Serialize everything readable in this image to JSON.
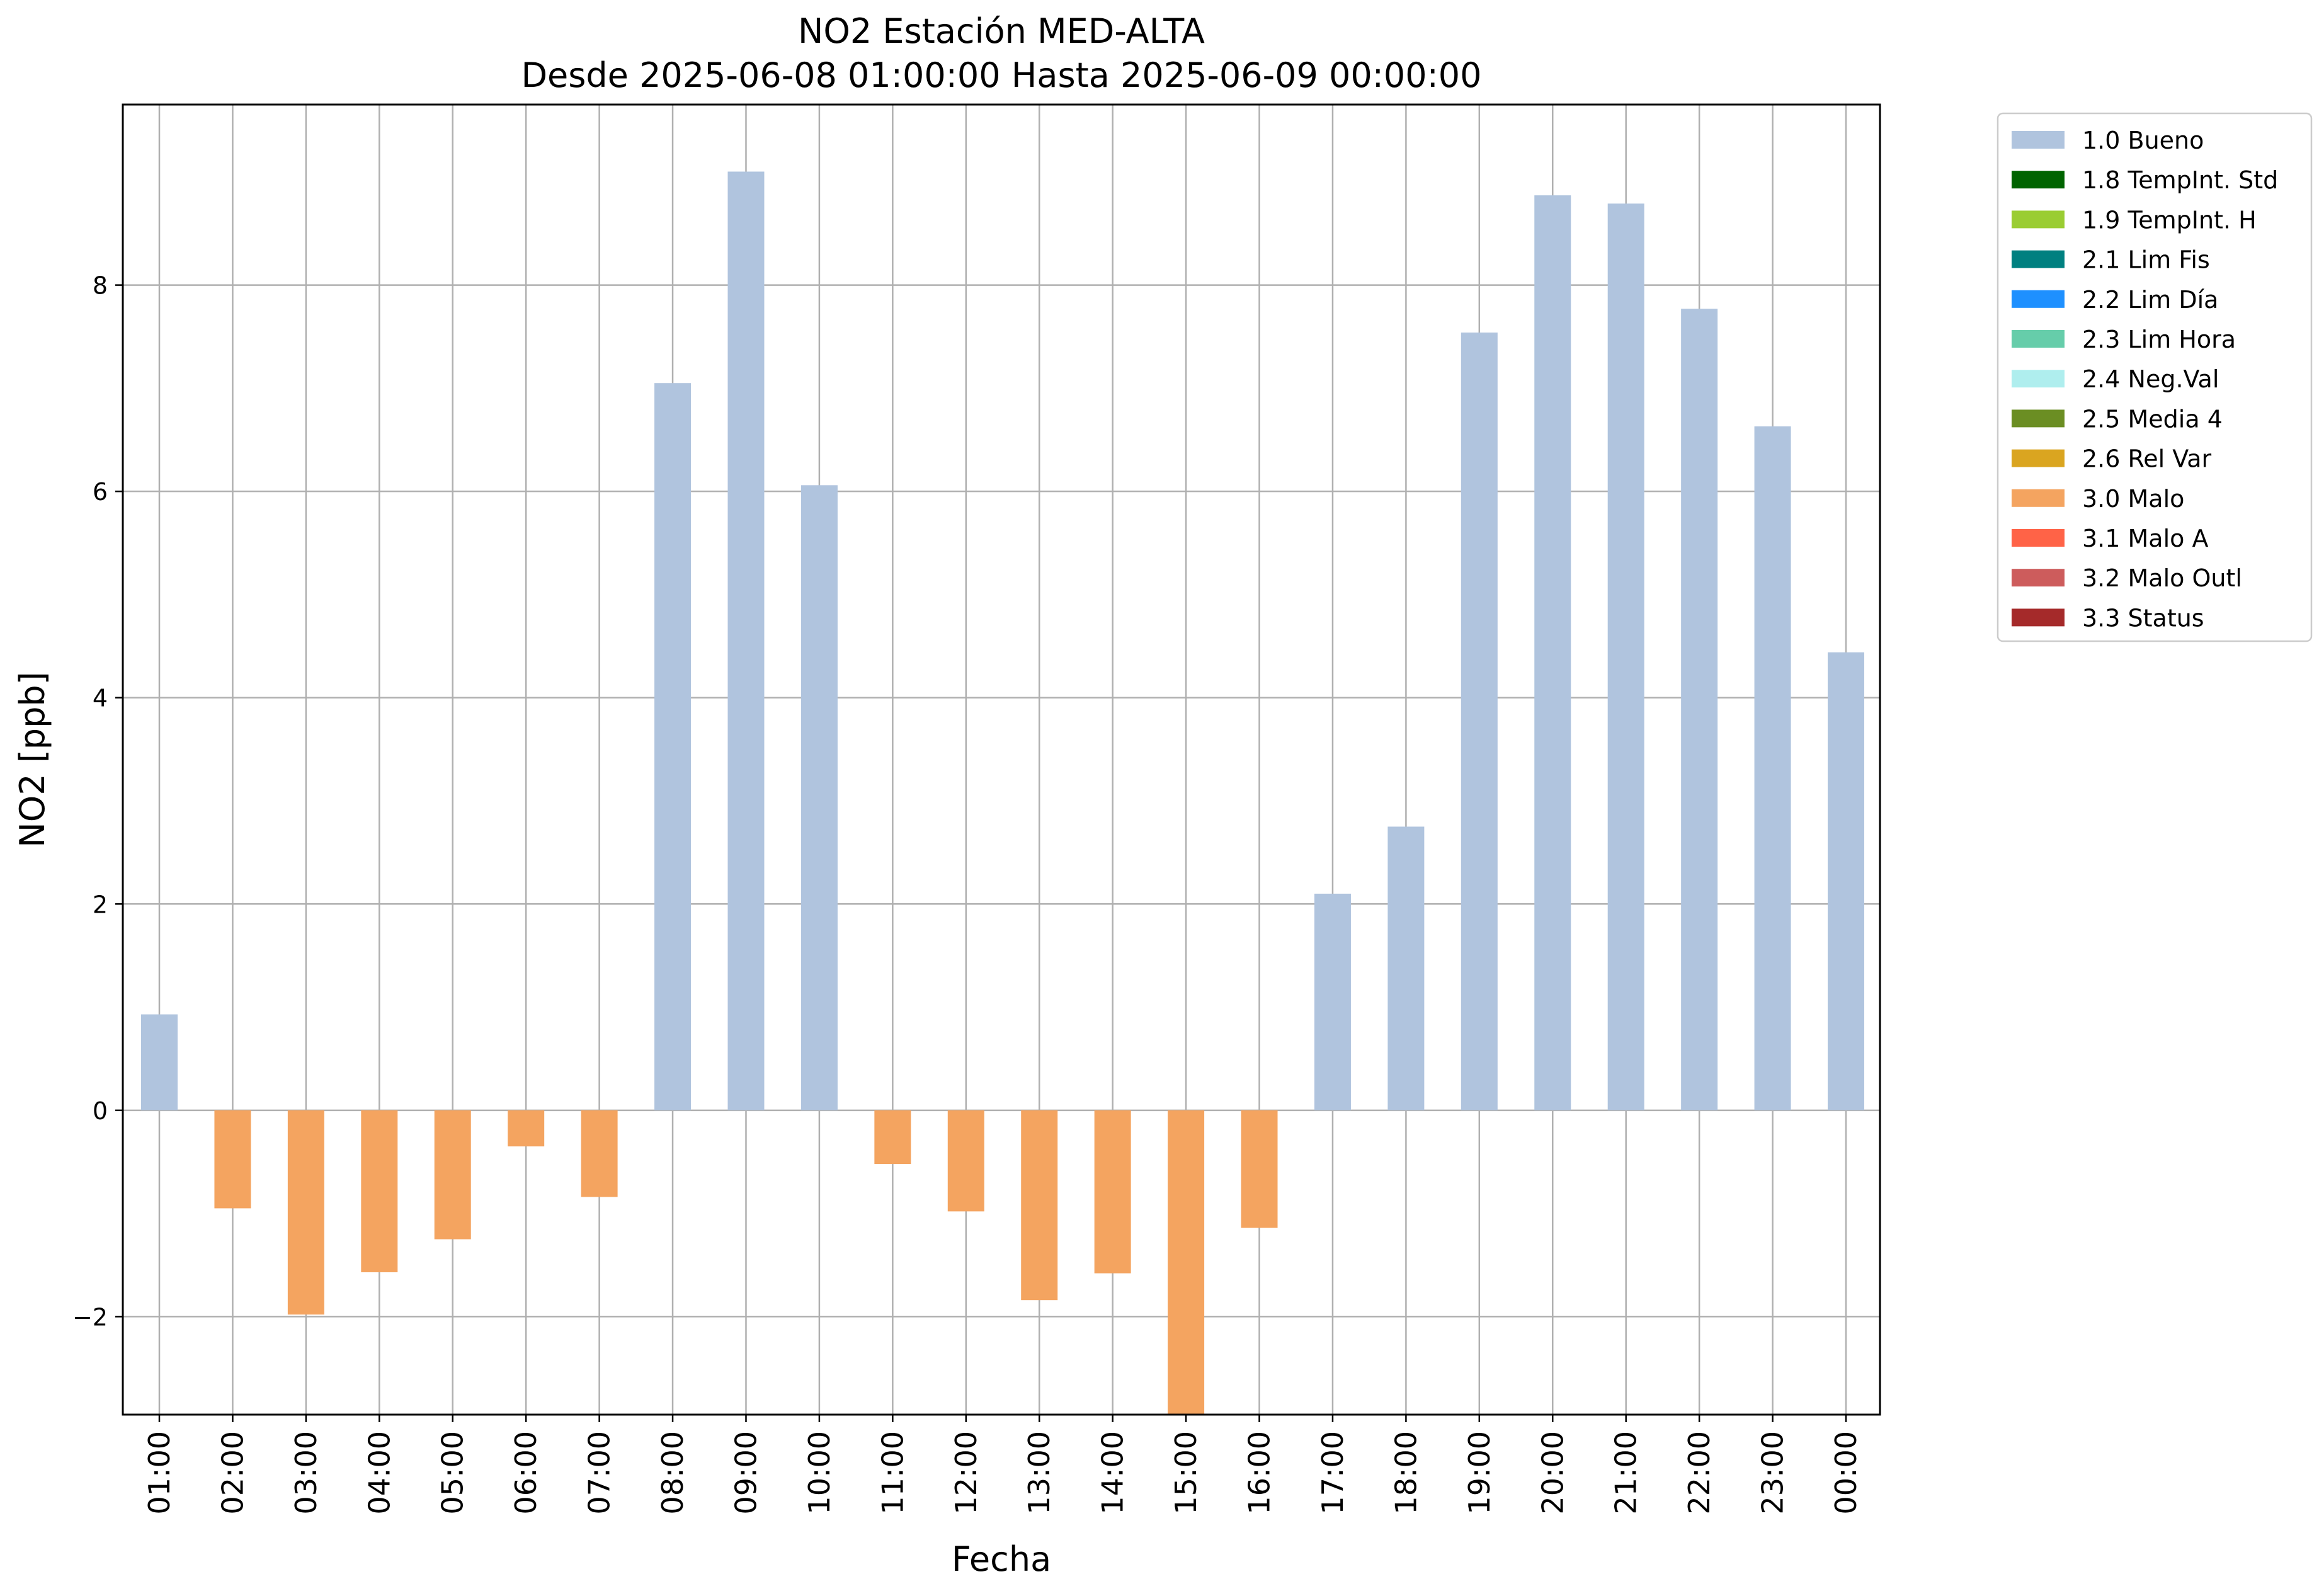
{
  "chart_data": {
    "type": "bar",
    "title": "NO2 Estación MED-ALTA",
    "subtitle": "Desde 2025-06-08 01:00:00 Hasta 2025-06-09 00:00:00",
    "xlabel": "Fecha",
    "ylabel": "NO2 [ppb]",
    "ylim": [
      -2.95,
      9.75
    ],
    "yticks": [
      -2,
      0,
      2,
      4,
      6,
      8
    ],
    "ytick_labels": [
      "−2",
      "0",
      "2",
      "4",
      "6",
      "8"
    ],
    "grid": true,
    "legend_position": "outside-right-top",
    "categories": [
      "01:00",
      "02:00",
      "03:00",
      "04:00",
      "05:00",
      "06:00",
      "07:00",
      "08:00",
      "09:00",
      "10:00",
      "11:00",
      "12:00",
      "13:00",
      "14:00",
      "15:00",
      "16:00",
      "17:00",
      "18:00",
      "19:00",
      "20:00",
      "21:00",
      "22:00",
      "23:00",
      "00:00"
    ],
    "values": [
      0.93,
      -0.95,
      -1.98,
      -1.57,
      -1.25,
      -0.35,
      -0.84,
      7.05,
      9.1,
      6.06,
      -0.52,
      -0.98,
      -1.84,
      -1.58,
      -2.95,
      -1.14,
      2.1,
      2.75,
      7.54,
      8.87,
      8.79,
      7.77,
      6.63,
      4.44
    ],
    "flags": [
      "1.0 Bueno",
      "3.0 Malo",
      "3.0 Malo",
      "3.0 Malo",
      "3.0 Malo",
      "3.0 Malo",
      "3.0 Malo",
      "1.0 Bueno",
      "1.0 Bueno",
      "1.0 Bueno",
      "3.0 Malo",
      "3.0 Malo",
      "3.0 Malo",
      "3.0 Malo",
      "3.0 Malo",
      "3.0 Malo",
      "1.0 Bueno",
      "1.0 Bueno",
      "1.0 Bueno",
      "1.0 Bueno",
      "1.0 Bueno",
      "1.0 Bueno",
      "1.0 Bueno",
      "1.0 Bueno"
    ],
    "legend": [
      {
        "label": "1.0 Bueno",
        "color": "#b0c4de"
      },
      {
        "label": "1.8 TempInt. Std",
        "color": "#006400"
      },
      {
        "label": "1.9 TempInt. H",
        "color": "#9acd32"
      },
      {
        "label": "2.1 Lim Fis",
        "color": "#008080"
      },
      {
        "label": "2.2 Lim Día",
        "color": "#1e90ff"
      },
      {
        "label": "2.3 Lim Hora",
        "color": "#66cdaa"
      },
      {
        "label": "2.4 Neg.Val",
        "color": "#afeeee"
      },
      {
        "label": "2.5 Media 4",
        "color": "#6b8e23"
      },
      {
        "label": "2.6 Rel Var",
        "color": "#daa520"
      },
      {
        "label": "3.0 Malo",
        "color": "#f4a460"
      },
      {
        "label": "3.1 Malo A",
        "color": "#ff6347"
      },
      {
        "label": "3.2 Malo Outl",
        "color": "#cd5c5c"
      },
      {
        "label": "3.3 Status",
        "color": "#a52a2a"
      }
    ]
  }
}
